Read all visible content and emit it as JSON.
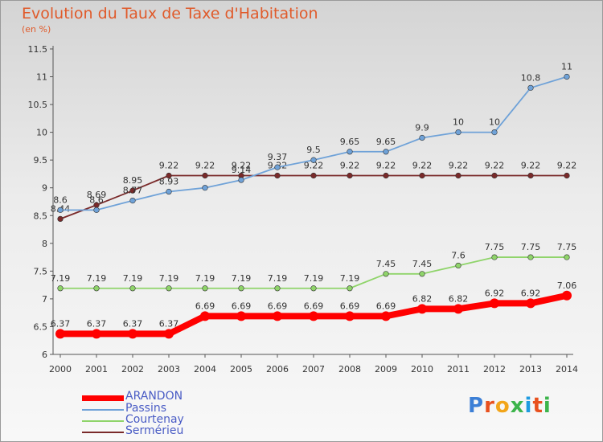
{
  "title": "Evolution du Taux de Taxe d'Habitation",
  "subtitle": "(en %)",
  "logo": {
    "text": "Proxiti",
    "colors": [
      "#3c7fd6",
      "#e8501e",
      "#f2a51a",
      "#3cb44b",
      "#1e9be0",
      "#e8501e",
      "#3cb44b"
    ]
  },
  "chart_data": {
    "type": "line",
    "x": [
      "2000",
      "2001",
      "2002",
      "2003",
      "2004",
      "2005",
      "2006",
      "2007",
      "2008",
      "2009",
      "2010",
      "2011",
      "2012",
      "2013",
      "2014"
    ],
    "ylim": [
      6,
      11.5
    ],
    "yticks": [
      "6",
      "6.5",
      "7",
      "7.5",
      "8",
      "8.5",
      "9",
      "9.5",
      "10",
      "10.5",
      "11",
      "11.5"
    ],
    "grid": false,
    "legend": "bottom-left",
    "series": [
      {
        "name": "Sermérieu",
        "color": "#7a2a2a",
        "values": [
          8.44,
          8.69,
          8.95,
          9.22,
          9.22,
          9.22,
          9.22,
          9.22,
          9.22,
          9.22,
          9.22,
          9.22,
          9.22,
          9.22,
          9.22
        ],
        "labels": [
          "8.44",
          "8.69",
          "8.95",
          "9.22",
          "9.22",
          "9.22",
          "9.22",
          "9.22",
          "9.22",
          "9.22",
          "9.22",
          "9.22",
          "9.22",
          "9.22",
          "9.22"
        ]
      },
      {
        "name": "Courtenay",
        "color": "#8fd46a",
        "values": [
          7.19,
          7.19,
          7.19,
          7.19,
          7.19,
          7.19,
          7.19,
          7.19,
          7.19,
          7.45,
          7.45,
          7.6,
          7.75,
          7.75,
          7.75
        ],
        "labels": [
          "7.19",
          "7.19",
          "7.19",
          "7.19",
          "7.19",
          "7.19",
          "7.19",
          "7.19",
          "7.19",
          "7.45",
          "7.45",
          "7.6",
          "7.75",
          "7.75",
          "7.75"
        ]
      },
      {
        "name": "Passins",
        "color": "#6fa2d8",
        "values": [
          8.6,
          8.6,
          8.77,
          8.93,
          9,
          9.14,
          9.37,
          9.5,
          9.65,
          9.65,
          9.9,
          10,
          10,
          10.8,
          11
        ],
        "labels": [
          "8.6",
          "8.6",
          "8.77",
          "8.93",
          "",
          "9.14",
          "9.37",
          "9.5",
          "9.65",
          "9.65",
          "9.9",
          "10",
          "10",
          "10.8",
          "11"
        ]
      },
      {
        "name": "ARANDON",
        "color": "#ff0000",
        "values": [
          6.37,
          6.37,
          6.37,
          6.37,
          6.69,
          6.69,
          6.69,
          6.69,
          6.69,
          6.69,
          6.82,
          6.82,
          6.92,
          6.92,
          7.06
        ],
        "labels": [
          "6.37",
          "6.37",
          "6.37",
          "6.37",
          "6.69",
          "6.69",
          "6.69",
          "6.69",
          "6.69",
          "6.69",
          "6.82",
          "6.82",
          "6.92",
          "6.92",
          "7.06"
        ]
      }
    ]
  }
}
